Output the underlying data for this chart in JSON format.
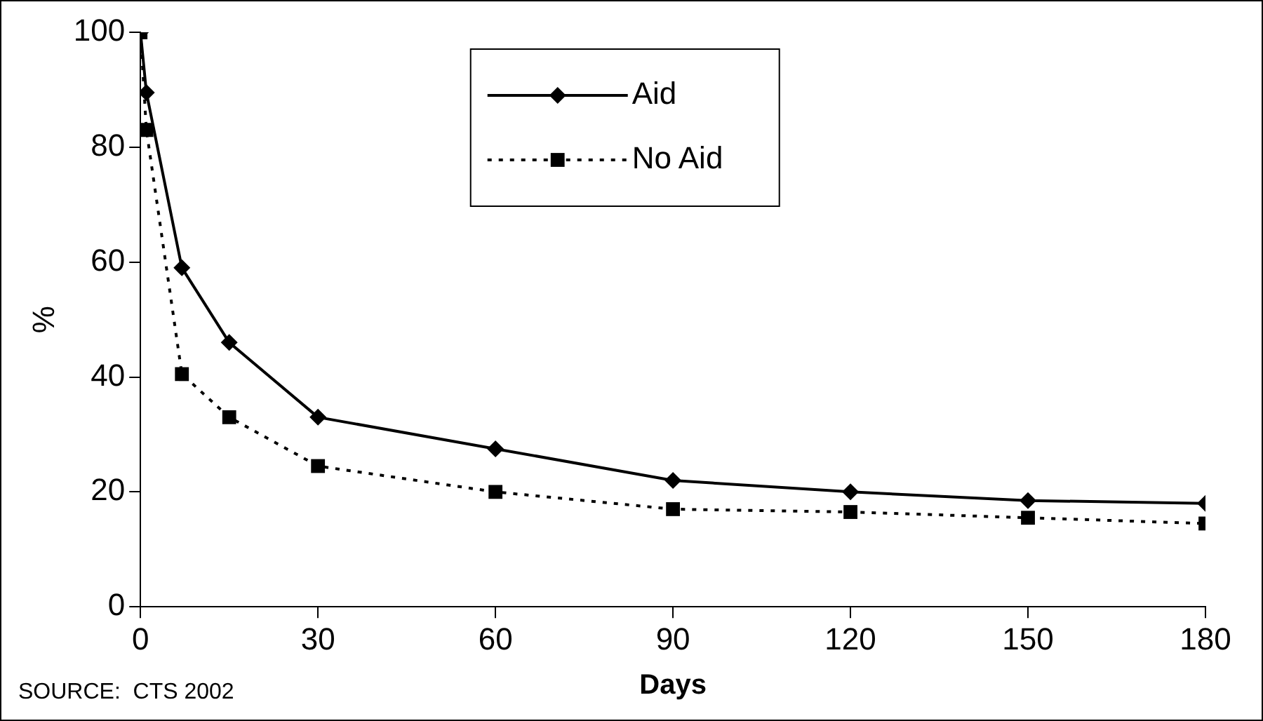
{
  "chart_data": {
    "type": "line",
    "xlabel": "Days",
    "ylabel": "%",
    "x": [
      0,
      1,
      7,
      15,
      30,
      60,
      90,
      120,
      150,
      180
    ],
    "series": [
      {
        "name": "Aid",
        "color": "#000000",
        "marker": "diamond",
        "line_style": "solid",
        "values": [
          100,
          89.5,
          59,
          46,
          33,
          27.5,
          22,
          20,
          18.5,
          18
        ]
      },
      {
        "name": "No Aid",
        "color": "#000000",
        "marker": "square",
        "line_style": "dotted",
        "values": [
          100,
          83,
          40.5,
          33,
          24.5,
          20,
          17,
          16.5,
          15.5,
          14.5
        ]
      }
    ],
    "xlim": [
      0,
      180
    ],
    "xticks": [
      0,
      30,
      60,
      90,
      120,
      150,
      180
    ],
    "ylim": [
      0,
      100
    ],
    "yticks": [
      0,
      20,
      40,
      60,
      80,
      100
    ],
    "grid": false,
    "legend": "top",
    "annotations": [
      "SOURCE:  CTS 2002"
    ]
  }
}
